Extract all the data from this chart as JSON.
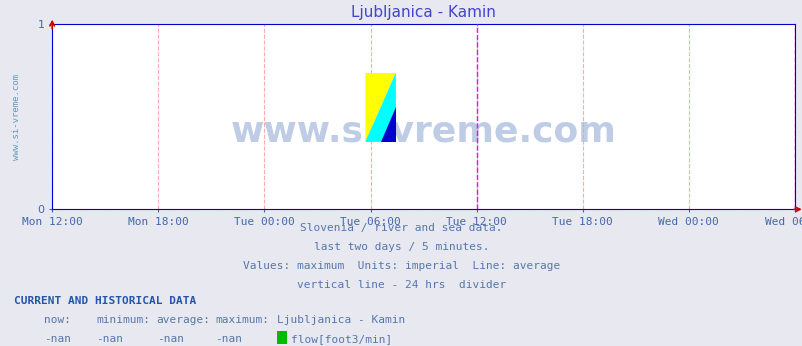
{
  "title": "Ljubljanica - Kamin",
  "background_color": "#e8e8f0",
  "plot_bg_color": "#ffffff",
  "x_tick_labels": [
    "Mon 12:00",
    "Mon 18:00",
    "Tue 00:00",
    "Tue 06:00",
    "Tue 12:00",
    "Tue 18:00",
    "Wed 00:00",
    "Wed 06:00"
  ],
  "x_tick_positions": [
    0,
    0.142857,
    0.285714,
    0.428571,
    0.571429,
    0.714286,
    0.857143,
    1.0
  ],
  "ylim": [
    0,
    1
  ],
  "yticks": [
    0,
    1
  ],
  "grid_color": "#ffaaaa",
  "grid_style": "--",
  "axis_color": "#0000cc",
  "title_color": "#4444cc",
  "title_fontsize": 11,
  "tick_label_color": "#4466aa",
  "tick_fontsize": 8,
  "vertical_line_x": 0.571429,
  "vertical_line_color": "#ff00ff",
  "vertical_line_style": "--",
  "right_arrow_color": "#cc0000",
  "top_arrow_color": "#cc0000",
  "watermark_text": "www.si-vreme.com",
  "watermark_color": "#aabbdd",
  "watermark_fontsize": 26,
  "watermark_alpha": 0.75,
  "rotated_text": "www.si-vreme.com",
  "rotated_text_color": "#6699bb",
  "rotated_text_fontsize": 6.5,
  "subtitle_lines": [
    "Slovenia / river and sea data.",
    "last two days / 5 minutes.",
    "Values: maximum  Units: imperial  Line: average",
    "vertical line - 24 hrs  divider"
  ],
  "subtitle_color": "#5577aa",
  "subtitle_fontsize": 8,
  "footer_header": "CURRENT AND HISTORICAL DATA",
  "footer_header_color": "#2255aa",
  "footer_header_fontsize": 8,
  "footer_cols": [
    "now:",
    "minimum:",
    "average:",
    "maximum:",
    "Ljubljanica - Kamin"
  ],
  "footer_vals": [
    "-nan",
    "-nan",
    "-nan",
    "-nan"
  ],
  "footer_color": "#5577aa",
  "footer_fontsize": 8,
  "legend_color": "#00bb00",
  "legend_label": "flow[foot3/min]"
}
